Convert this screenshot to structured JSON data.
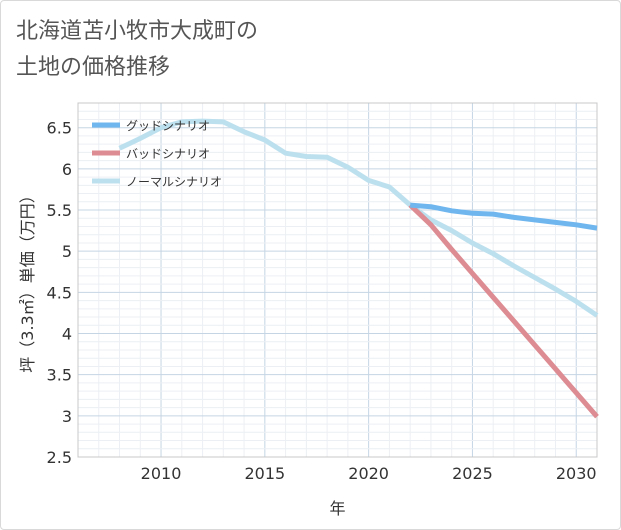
{
  "title_line1": "北海道苫小牧市大成町の",
  "title_line2": "土地の価格推移",
  "chart_data": {
    "type": "line",
    "xlabel": "年",
    "ylabel": "坪（3.3㎡）単価（万円）",
    "xlim": [
      2006,
      2031
    ],
    "ylim": [
      2.5,
      6.8
    ],
    "x_ticks": [
      2010,
      2015,
      2020,
      2025,
      2030
    ],
    "y_ticks": [
      2.5,
      3,
      3.5,
      4,
      4.5,
      5,
      5.5,
      6,
      6.5
    ],
    "grid": true,
    "legend": "top-left",
    "series": [
      {
        "name": "グッドシナリオ",
        "color": "#6fb6ef",
        "x": [
          2022,
          2023,
          2024,
          2025,
          2026,
          2027,
          2028,
          2029,
          2030,
          2031
        ],
        "y": [
          5.56,
          5.54,
          5.49,
          5.46,
          5.45,
          5.41,
          5.38,
          5.35,
          5.32,
          5.28
        ]
      },
      {
        "name": "バッドシナリオ",
        "color": "#dc8c92",
        "x": [
          2022,
          2023,
          2024,
          2025,
          2026,
          2027,
          2028,
          2029,
          2030,
          2031
        ],
        "y": [
          5.56,
          5.32,
          5.02,
          4.73,
          4.44,
          4.15,
          3.86,
          3.57,
          3.28,
          2.99
        ]
      },
      {
        "name": "ノーマルシナリオ",
        "color": "#bde0ee",
        "x": [
          2008,
          2009,
          2010,
          2011,
          2012,
          2013,
          2014,
          2015,
          2016,
          2017,
          2018,
          2019,
          2020,
          2021,
          2022,
          2023,
          2024,
          2025,
          2026,
          2027,
          2028,
          2029,
          2030,
          2031
        ],
        "y": [
          6.25,
          6.37,
          6.5,
          6.57,
          6.58,
          6.57,
          6.45,
          6.35,
          6.19,
          6.15,
          6.14,
          6.02,
          5.86,
          5.78,
          5.56,
          5.38,
          5.25,
          5.1,
          4.97,
          4.82,
          4.68,
          4.54,
          4.39,
          4.22
        ]
      }
    ]
  }
}
